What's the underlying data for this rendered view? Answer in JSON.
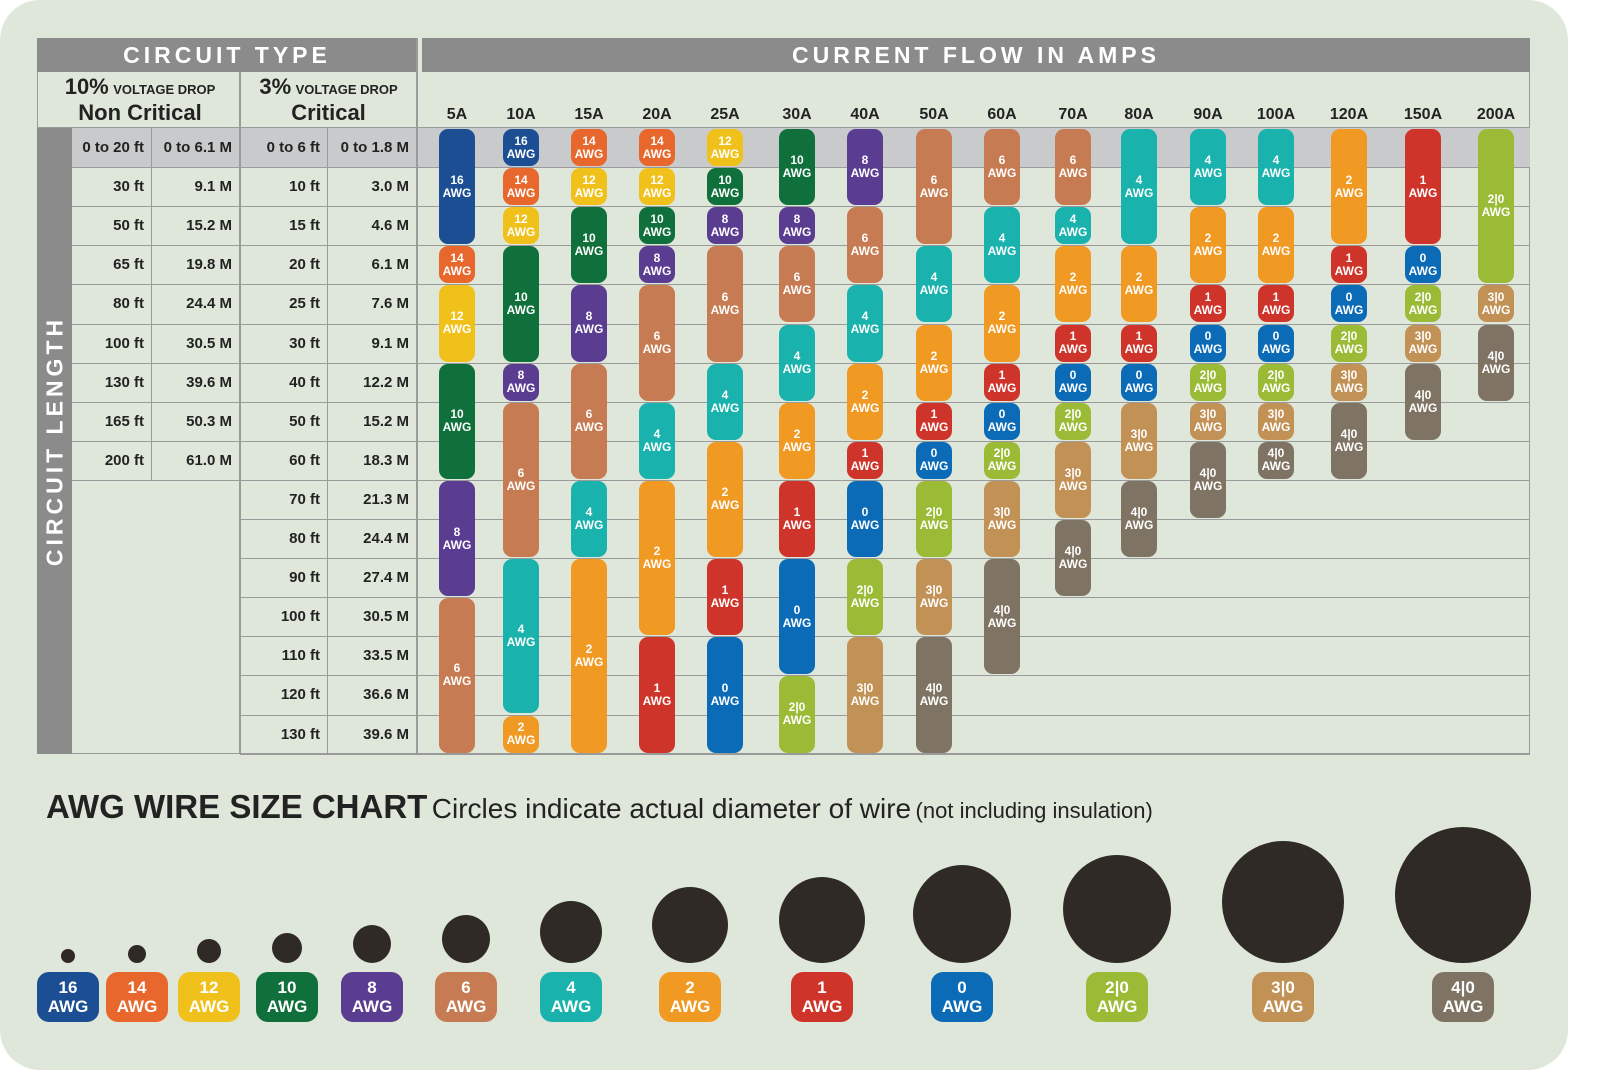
{
  "chart_data": {
    "type": "table",
    "header_left": "CIRCUIT TYPE",
    "header_right": "CURRENT FLOW IN AMPS",
    "side_label": "CIRCUIT LENGTH",
    "non_critical": {
      "pct": "10%",
      "drop": "VOLTAGE DROP",
      "name": "Non Critical"
    },
    "critical": {
      "pct": "3%",
      "drop": "VOLTAGE DROP",
      "name": "Critical"
    },
    "rows": [
      [
        "0 to 20 ft",
        "0 to 6.1 M",
        "0 to 6 ft",
        "0 to 1.8 M"
      ],
      [
        "30 ft",
        "9.1 M",
        "10 ft",
        "3.0 M"
      ],
      [
        "50 ft",
        "15.2 M",
        "15 ft",
        "4.6 M"
      ],
      [
        "65 ft",
        "19.8 M",
        "20 ft",
        "6.1 M"
      ],
      [
        "80 ft",
        "24.4 M",
        "25 ft",
        "7.6 M"
      ],
      [
        "100 ft",
        "30.5 M",
        "30 ft",
        "9.1 M"
      ],
      [
        "130 ft",
        "39.6 M",
        "40 ft",
        "12.2 M"
      ],
      [
        "165 ft",
        "50.3 M",
        "50 ft",
        "15.2 M"
      ],
      [
        "200 ft",
        "61.0 M",
        "60 ft",
        "18.3 M"
      ],
      [
        "",
        "",
        "70 ft",
        "21.3 M"
      ],
      [
        "",
        "",
        "80 ft",
        "24.4 M"
      ],
      [
        "",
        "",
        "90 ft",
        "27.4 M"
      ],
      [
        "",
        "",
        "100 ft",
        "30.5 M"
      ],
      [
        "",
        "",
        "110 ft",
        "33.5 M"
      ],
      [
        "",
        "",
        "120 ft",
        "36.6 M"
      ],
      [
        "",
        "",
        "130 ft",
        "39.6 M"
      ]
    ],
    "columns": [
      {
        "amps": "5A",
        "segments": [
          [
            "16",
            0,
            2
          ],
          [
            "14",
            3,
            3
          ],
          [
            "12",
            4,
            5
          ],
          [
            "10",
            6,
            8
          ],
          [
            "8",
            9,
            11
          ],
          [
            "6",
            12,
            15
          ]
        ]
      },
      {
        "amps": "10A",
        "segments": [
          [
            "16",
            0,
            0
          ],
          [
            "14",
            1,
            1
          ],
          [
            "12",
            2,
            2
          ],
          [
            "10",
            3,
            5
          ],
          [
            "8",
            6,
            6
          ],
          [
            "6",
            7,
            10
          ],
          [
            "4",
            11,
            14
          ],
          [
            "2",
            15,
            15
          ]
        ]
      },
      {
        "amps": "15A",
        "segments": [
          [
            "14",
            0,
            0
          ],
          [
            "12",
            1,
            1
          ],
          [
            "10",
            2,
            3
          ],
          [
            "8",
            4,
            5
          ],
          [
            "6",
            6,
            8
          ],
          [
            "4",
            9,
            10
          ],
          [
            "2",
            11,
            15
          ]
        ]
      },
      {
        "amps": "20A",
        "segments": [
          [
            "14",
            0,
            0
          ],
          [
            "12",
            1,
            1
          ],
          [
            "10",
            2,
            2
          ],
          [
            "8",
            3,
            3
          ],
          [
            "6",
            4,
            6
          ],
          [
            "4",
            7,
            8
          ],
          [
            "2",
            9,
            12
          ],
          [
            "1",
            13,
            15
          ]
        ]
      },
      {
        "amps": "25A",
        "segments": [
          [
            "12",
            0,
            0
          ],
          [
            "10",
            1,
            1
          ],
          [
            "8",
            2,
            2
          ],
          [
            "6",
            3,
            5
          ],
          [
            "4",
            6,
            7
          ],
          [
            "2",
            8,
            10
          ],
          [
            "1",
            11,
            12
          ],
          [
            "0",
            13,
            15
          ]
        ]
      },
      {
        "amps": "30A",
        "segments": [
          [
            "10",
            0,
            1
          ],
          [
            "8",
            2,
            2
          ],
          [
            "6",
            3,
            4
          ],
          [
            "4",
            5,
            6
          ],
          [
            "2",
            7,
            8
          ],
          [
            "1",
            9,
            10
          ],
          [
            "0",
            11,
            13
          ],
          [
            "2|0",
            14,
            15
          ]
        ]
      },
      {
        "amps": "40A",
        "segments": [
          [
            "8",
            0,
            1
          ],
          [
            "6",
            2,
            3
          ],
          [
            "4",
            4,
            5
          ],
          [
            "2",
            6,
            7
          ],
          [
            "1",
            8,
            8
          ],
          [
            "0",
            9,
            10
          ],
          [
            "2|0",
            11,
            12
          ],
          [
            "3|0",
            13,
            15
          ]
        ]
      },
      {
        "amps": "50A",
        "segments": [
          [
            "6",
            0,
            2
          ],
          [
            "4",
            3,
            4
          ],
          [
            "2",
            5,
            6
          ],
          [
            "1",
            7,
            7
          ],
          [
            "0",
            8,
            8
          ],
          [
            "2|0",
            9,
            10
          ],
          [
            "3|0",
            11,
            12
          ],
          [
            "4|0",
            13,
            15
          ]
        ]
      },
      {
        "amps": "60A",
        "segments": [
          [
            "6",
            0,
            1
          ],
          [
            "4",
            2,
            3
          ],
          [
            "2",
            4,
            5
          ],
          [
            "1",
            6,
            6
          ],
          [
            "0",
            7,
            7
          ],
          [
            "2|0",
            8,
            8
          ],
          [
            "3|0",
            9,
            10
          ],
          [
            "4|0",
            11,
            13
          ]
        ]
      },
      {
        "amps": "70A",
        "segments": [
          [
            "6",
            0,
            1
          ],
          [
            "4",
            2,
            2
          ],
          [
            "2",
            3,
            4
          ],
          [
            "1",
            5,
            5
          ],
          [
            "0",
            6,
            6
          ],
          [
            "2|0",
            7,
            7
          ],
          [
            "3|0",
            8,
            9
          ],
          [
            "4|0",
            10,
            11
          ]
        ]
      },
      {
        "amps": "80A",
        "segments": [
          [
            "4",
            0,
            2
          ],
          [
            "2",
            3,
            4
          ],
          [
            "1",
            5,
            5
          ],
          [
            "0",
            6,
            6
          ],
          [
            "3|0",
            7,
            8
          ],
          [
            "4|0",
            9,
            10
          ]
        ]
      },
      {
        "amps": "90A",
        "segments": [
          [
            "4",
            0,
            1
          ],
          [
            "2",
            2,
            3
          ],
          [
            "1",
            4,
            4
          ],
          [
            "0",
            5,
            5
          ],
          [
            "2|0",
            6,
            6
          ],
          [
            "3|0",
            7,
            7
          ],
          [
            "4|0",
            8,
            9
          ]
        ]
      },
      {
        "amps": "100A",
        "segments": [
          [
            "4",
            0,
            1
          ],
          [
            "2",
            2,
            3
          ],
          [
            "1",
            4,
            4
          ],
          [
            "0",
            5,
            5
          ],
          [
            "2|0",
            6,
            6
          ],
          [
            "3|0",
            7,
            7
          ],
          [
            "4|0",
            8,
            8
          ]
        ]
      },
      {
        "amps": "120A",
        "segments": [
          [
            "2",
            0,
            2
          ],
          [
            "1",
            3,
            3
          ],
          [
            "0",
            4,
            4
          ],
          [
            "2|0",
            5,
            5
          ],
          [
            "3|0",
            6,
            6
          ],
          [
            "4|0",
            7,
            8
          ]
        ]
      },
      {
        "amps": "150A",
        "segments": [
          [
            "1",
            0,
            2
          ],
          [
            "0",
            3,
            3
          ],
          [
            "2|0",
            4,
            4
          ],
          [
            "3|0",
            5,
            5
          ],
          [
            "4|0",
            6,
            7
          ]
        ]
      },
      {
        "amps": "200A",
        "segments": [
          [
            "2|0",
            0,
            3
          ],
          [
            "3|0",
            4,
            4
          ],
          [
            "4|0",
            5,
            6
          ]
        ]
      }
    ],
    "awg_unit": "AWG",
    "gauges": [
      "16",
      "14",
      "12",
      "10",
      "8",
      "6",
      "4",
      "2",
      "1",
      "0",
      "2|0",
      "3|0",
      "4|0"
    ],
    "colors": {
      "16": "#1b4e93",
      "14": "#e8672d",
      "12": "#f1c11b",
      "10": "#10703b",
      "8": "#5a3c90",
      "6": "#c77b52",
      "4": "#19b2ac",
      "2": "#f0992319",
      "1": "#cf342b",
      "0": "#0c6bb7",
      "2|0": "#9bbb36",
      "3|0": "#c29156",
      "4|0": "#7f7463"
    }
  },
  "footer": {
    "title": "AWG WIRE SIZE CHART",
    "subtitle": "Circles indicate actual diameter of wire",
    "note": "(not including insulation)"
  }
}
